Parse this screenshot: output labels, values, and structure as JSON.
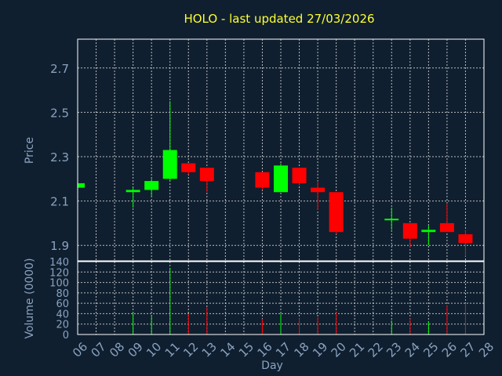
{
  "chart_data": {
    "type": "candlestick",
    "title": "HOLO - last updated 27/03/2026",
    "xlabel": "Day",
    "ylabel_price": "Price",
    "ylabel_volume": "Volume (0000)",
    "x_ticks": [
      "06",
      "07",
      "08",
      "09",
      "10",
      "11",
      "12",
      "13",
      "14",
      "15",
      "16",
      "17",
      "18",
      "19",
      "20",
      "21",
      "22",
      "23",
      "24",
      "25",
      "26",
      "27",
      "28"
    ],
    "price_ticks": [
      "1.9",
      "2.1",
      "2.3",
      "2.5",
      "2.7"
    ],
    "price_tick_values": [
      1.9,
      2.1,
      2.3,
      2.5,
      2.7
    ],
    "price_range": [
      1.83,
      2.83
    ],
    "volume_ticks": [
      "0",
      "20",
      "40",
      "60",
      "80",
      "100",
      "120",
      "140"
    ],
    "volume_tick_values": [
      0,
      20,
      40,
      60,
      80,
      100,
      120,
      140
    ],
    "volume_range": [
      0,
      140
    ],
    "grid": true,
    "colors": {
      "up": "#00ff00",
      "down": "#ff0000",
      "title": "#ffff33",
      "axis_text": "#8aa2c0",
      "background": "#0f1f2f"
    },
    "candles": [
      {
        "day": "06",
        "open": 2.16,
        "high": 2.18,
        "low": 2.16,
        "close": 2.18,
        "volume": 0
      },
      {
        "day": "09",
        "open": 2.14,
        "high": 2.16,
        "low": 2.07,
        "close": 2.15,
        "volume": 42
      },
      {
        "day": "10",
        "open": 2.15,
        "high": 2.2,
        "low": 2.12,
        "close": 2.19,
        "volume": 35
      },
      {
        "day": "11",
        "open": 2.2,
        "high": 2.55,
        "low": 2.19,
        "close": 2.33,
        "volume": 128
      },
      {
        "day": "12",
        "open": 2.27,
        "high": 2.27,
        "low": 2.22,
        "close": 2.23,
        "volume": 39
      },
      {
        "day": "13",
        "open": 2.25,
        "high": 2.25,
        "low": 2.14,
        "close": 2.19,
        "volume": 52
      },
      {
        "day": "16",
        "open": 2.23,
        "high": 2.23,
        "low": 2.15,
        "close": 2.16,
        "volume": 30
      },
      {
        "day": "17",
        "open": 2.14,
        "high": 2.27,
        "low": 2.14,
        "close": 2.26,
        "volume": 40
      },
      {
        "day": "18",
        "open": 2.25,
        "high": 2.25,
        "low": 2.17,
        "close": 2.18,
        "volume": 31
      },
      {
        "day": "19",
        "open": 2.16,
        "high": 2.19,
        "low": 2.06,
        "close": 2.14,
        "volume": 33
      },
      {
        "day": "20",
        "open": 2.14,
        "high": 2.14,
        "low": 1.95,
        "close": 1.96,
        "volume": 43
      },
      {
        "day": "23",
        "open": 2.02,
        "high": 2.07,
        "low": 1.97,
        "close": 2.02,
        "volume": 27
      },
      {
        "day": "24",
        "open": 2.0,
        "high": 2.0,
        "low": 1.89,
        "close": 1.93,
        "volume": 31
      },
      {
        "day": "25",
        "open": 1.96,
        "high": 1.99,
        "low": 1.9,
        "close": 1.97,
        "volume": 25
      },
      {
        "day": "26",
        "open": 2.0,
        "high": 2.09,
        "low": 1.96,
        "close": 1.96,
        "volume": 56
      },
      {
        "day": "27",
        "open": 1.95,
        "high": 1.97,
        "low": 1.85,
        "close": 1.91,
        "volume": 60
      }
    ]
  }
}
